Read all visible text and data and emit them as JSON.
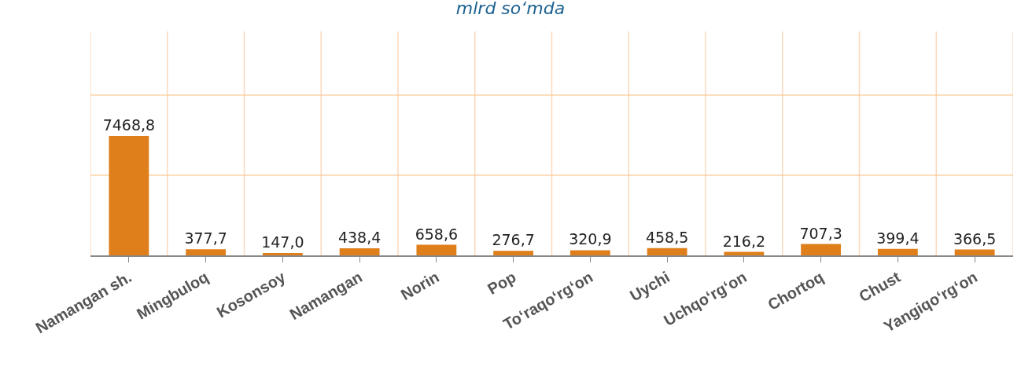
{
  "chart_data": {
    "type": "bar",
    "title": "mlrd so‘mda",
    "categories": [
      "Namangan sh.",
      "Mingbuloq",
      "Kosonsoy",
      "Namangan",
      "Norin",
      "Pop",
      "To‘raqo‘rg‘on",
      "Uychi",
      "Uchqo‘rg‘on",
      "Chortoq",
      "Chust",
      "Yangiqo‘rg‘on"
    ],
    "values": [
      7468.8,
      377.7,
      147.0,
      438.4,
      658.6,
      276.7,
      320.9,
      458.5,
      216.2,
      707.3,
      399.4,
      366.5
    ],
    "value_labels": [
      "7468,8",
      "377,7",
      "147,0",
      "438,4",
      "658,6",
      "276,7",
      "320,9",
      "458,5",
      "216,2",
      "707,3",
      "399,4",
      "366,5"
    ],
    "color": "#df7f1b",
    "ylim": [
      0,
      14000
    ],
    "yticks": [
      {
        "value": 0,
        "label": null
      },
      {
        "value": 5000,
        "label": null
      },
      {
        "value": 10000,
        "label": null
      }
    ],
    "grid": true,
    "tick_labels": "x"
  }
}
